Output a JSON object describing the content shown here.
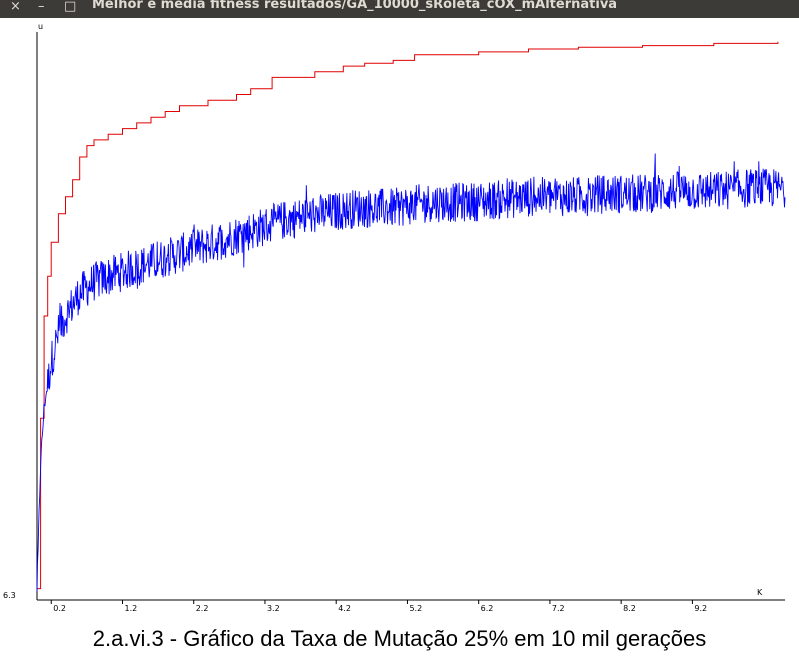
{
  "window": {
    "title": "Melhor e media fitness resultados/GA_10000_sRoleta_cOX_mAlternativa",
    "close_icon": "×",
    "minimize_icon": "–",
    "maximize_icon": "□"
  },
  "caption": "2.a.vi.3 - Gráfico da Taxa de Mutação 25% em 10 mil gerações",
  "chart_data": {
    "type": "line",
    "y_axis_label": "u",
    "x_axis_label": "K",
    "y_min_label": "6.3",
    "x_tick_labels": [
      "0.2",
      "1.2",
      "2.2",
      "3.2",
      "4.2",
      "5.2",
      "6.2",
      "7.2",
      "8.2",
      "9.2"
    ],
    "x_ticks": [
      0.2,
      1.2,
      2.2,
      3.2,
      4.2,
      5.2,
      6.2,
      7.2,
      8.2,
      9.2
    ],
    "xlim": [
      0,
      10.5
    ],
    "ylim": [
      0,
      100
    ],
    "grid": false,
    "legend": "none",
    "series": [
      {
        "color": "#e00000",
        "style": "step",
        "points": [
          [
            0.0,
            2
          ],
          [
            0.05,
            32
          ],
          [
            0.1,
            50
          ],
          [
            0.15,
            57
          ],
          [
            0.2,
            63
          ],
          [
            0.3,
            68
          ],
          [
            0.4,
            71
          ],
          [
            0.5,
            74
          ],
          [
            0.6,
            78
          ],
          [
            0.7,
            80
          ],
          [
            0.8,
            81
          ],
          [
            1.0,
            82
          ],
          [
            1.2,
            83
          ],
          [
            1.4,
            84
          ],
          [
            1.6,
            85
          ],
          [
            1.8,
            86
          ],
          [
            2.0,
            87
          ],
          [
            2.4,
            88
          ],
          [
            2.8,
            89
          ],
          [
            3.0,
            90
          ],
          [
            3.3,
            92
          ],
          [
            3.9,
            93
          ],
          [
            4.3,
            94
          ],
          [
            4.6,
            94.5
          ],
          [
            5.0,
            95
          ],
          [
            5.3,
            96
          ],
          [
            6.2,
            96.5
          ],
          [
            6.9,
            97
          ],
          [
            7.6,
            97.3
          ],
          [
            8.5,
            97.6
          ],
          [
            9.5,
            98
          ],
          [
            10.4,
            98.3
          ]
        ]
      },
      {
        "color": "#0000ff",
        "style": "noisy",
        "points": [
          [
            0.0,
            2
          ],
          [
            0.05,
            24
          ],
          [
            0.1,
            34
          ],
          [
            0.2,
            42
          ],
          [
            0.3,
            47
          ],
          [
            0.4,
            50
          ],
          [
            0.5,
            52
          ],
          [
            0.6,
            54
          ],
          [
            0.8,
            56
          ],
          [
            1.0,
            57
          ],
          [
            1.5,
            59
          ],
          [
            2.0,
            61
          ],
          [
            2.5,
            63
          ],
          [
            3.0,
            65
          ],
          [
            3.5,
            67
          ],
          [
            4.0,
            68
          ],
          [
            4.5,
            69
          ],
          [
            5.0,
            69
          ],
          [
            5.5,
            70
          ],
          [
            6.0,
            70
          ],
          [
            6.5,
            70.5
          ],
          [
            7.0,
            71
          ],
          [
            7.5,
            71
          ],
          [
            8.0,
            71.5
          ],
          [
            8.5,
            71.5
          ],
          [
            9.0,
            72
          ],
          [
            9.5,
            72
          ],
          [
            10.0,
            72.5
          ],
          [
            10.5,
            72.5
          ]
        ],
        "noise_amplitude": 3.5
      }
    ]
  }
}
